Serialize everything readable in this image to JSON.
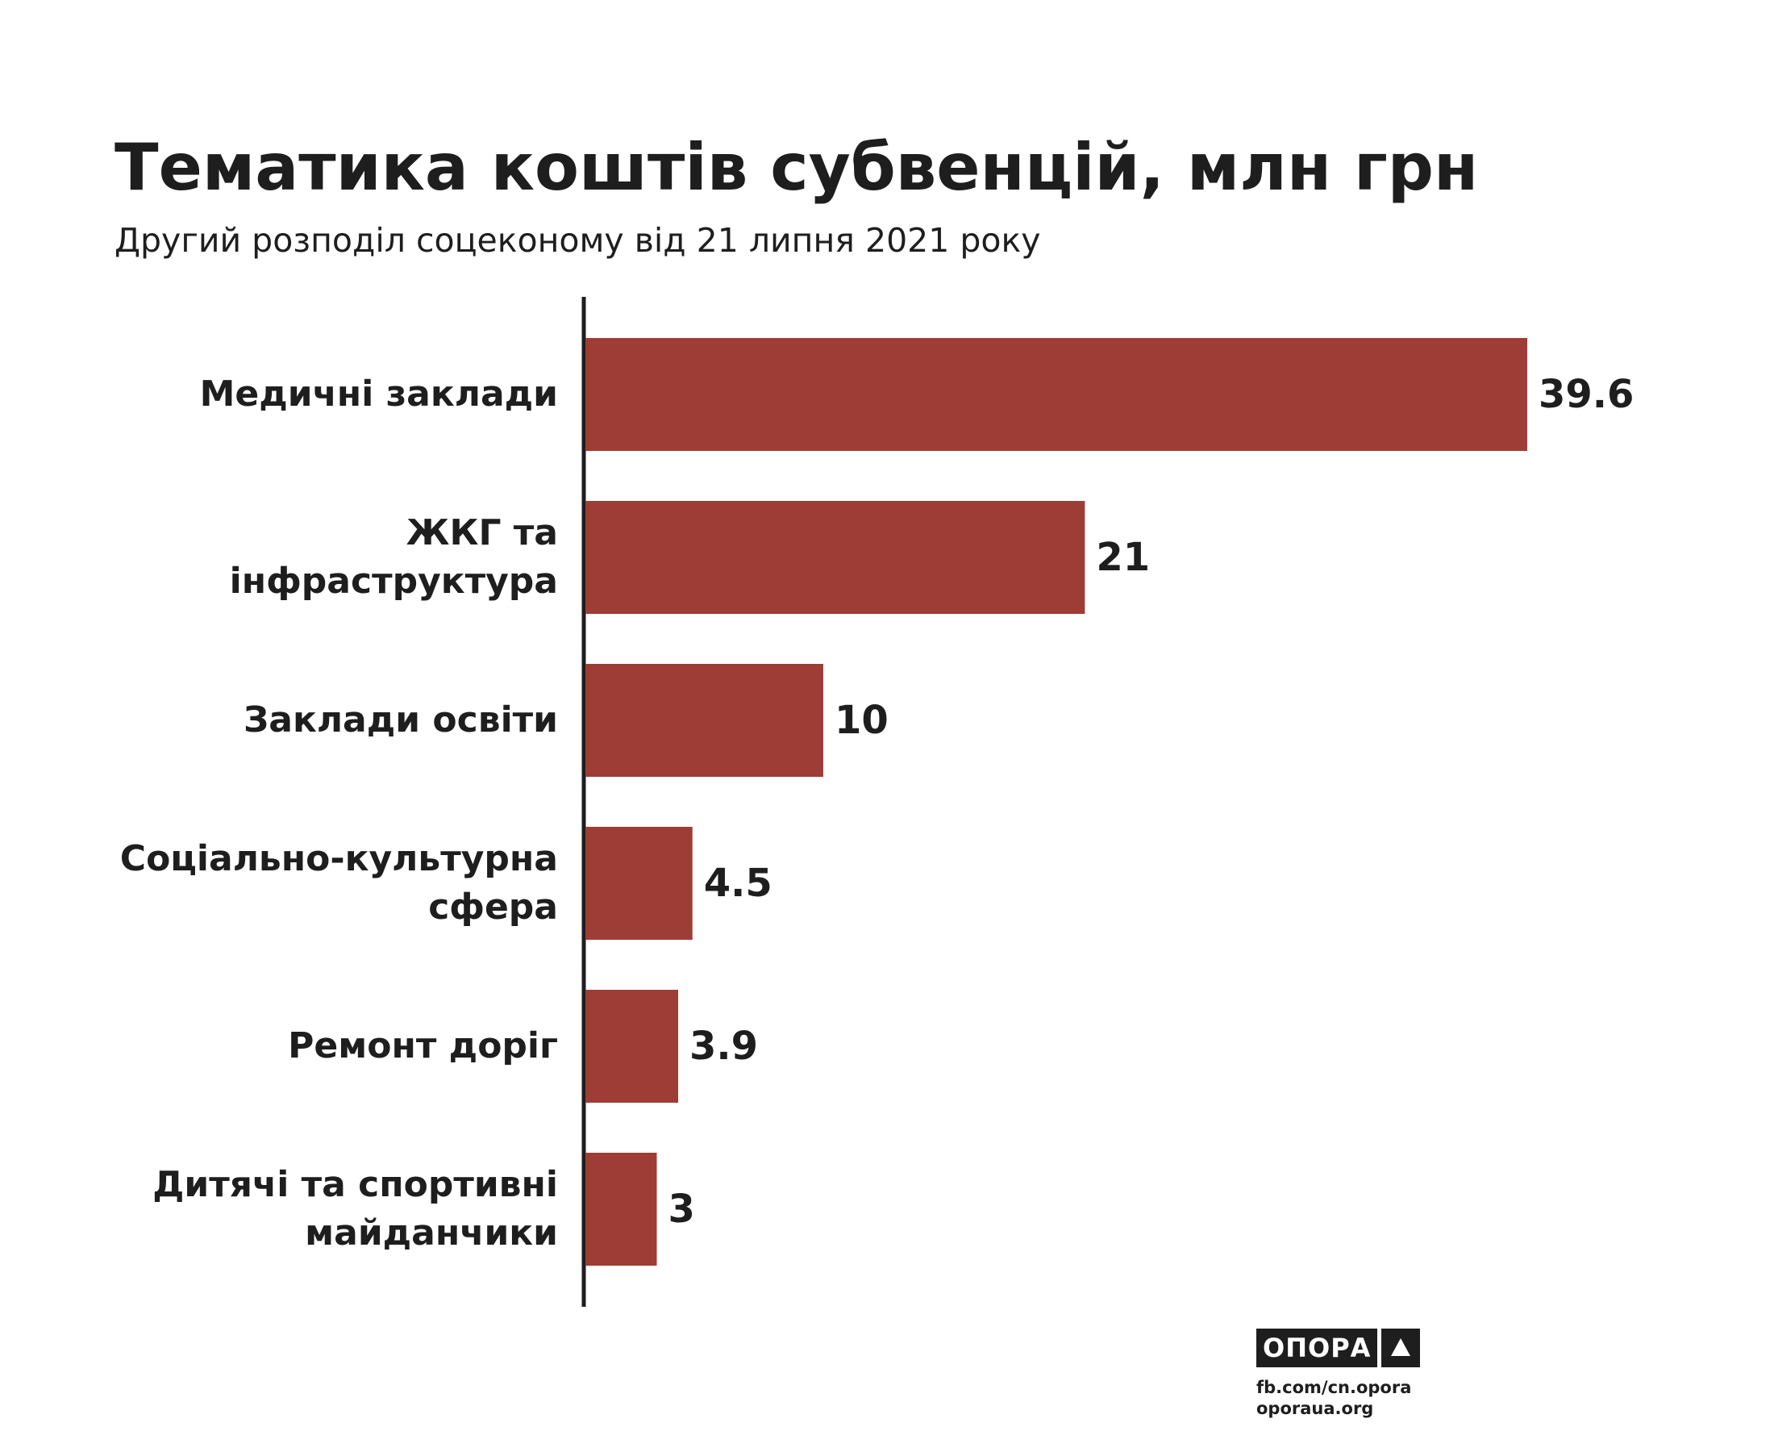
{
  "title": "Тематика коштів субвенцій, млн грн",
  "subtitle": "Другий розподіл соцекономy від 21 липня 2021 року",
  "chart_data": {
    "type": "bar",
    "orientation": "horizontal",
    "categories": [
      "Медичні заклади",
      "ЖКГ та інфраструктура",
      "Заклади освіти",
      "Соціально-культурна сфера",
      "Ремонт доріг",
      "Дитячі та спортивні майданчики"
    ],
    "values": [
      39.6,
      21,
      10,
      4.5,
      3.9,
      3
    ],
    "value_labels": [
      "39.6",
      "21",
      "10",
      "4.5",
      "3.9",
      "3"
    ],
    "xlim": [
      0,
      39.6
    ],
    "bar_color": "#9e3d35",
    "axis_color": "#1e1e1e",
    "grid": false,
    "legend": "none"
  },
  "branding": {
    "logo": "ОПОРА",
    "icon": "triangle-icon",
    "links": [
      "fb.com/cn.opora",
      "oporaua.org"
    ]
  }
}
